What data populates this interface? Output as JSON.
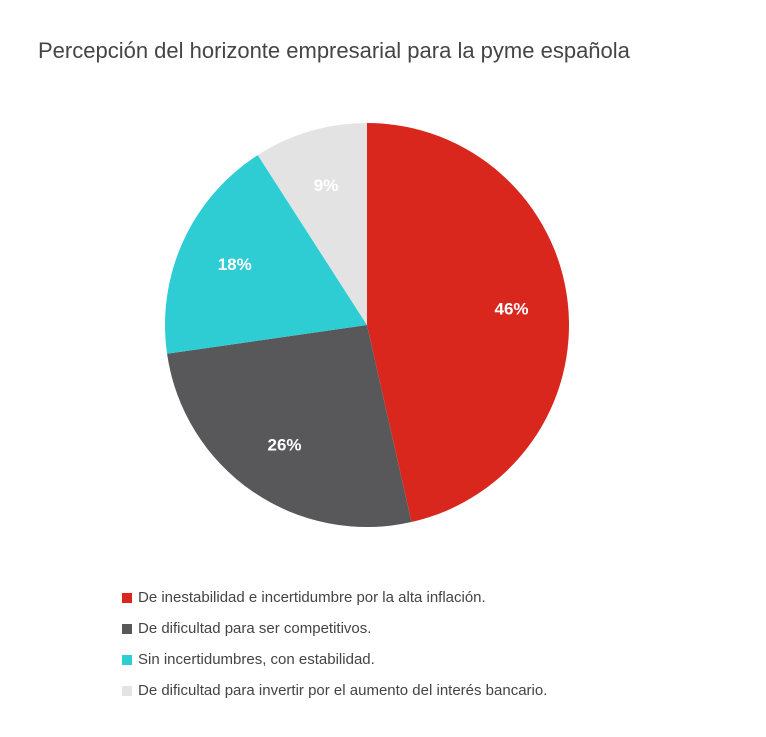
{
  "chart_data": {
    "type": "pie",
    "title": "Percepción del horizonte empresarial para la pyme española",
    "categories": [
      "De inestabilidad e incertidumbre por la alta inflación.",
      "De dificultad para ser competitivos.",
      "Sin incertidumbres, con estabilidad.",
      "De dificultad para invertir por el aumento del interés bancario."
    ],
    "values": [
      46,
      26,
      18,
      9
    ],
    "labels": [
      "46%",
      "26%",
      "18%",
      "9%"
    ],
    "colors": [
      "#d9271e",
      "#58585a",
      "#2ecdd4",
      "#e3e3e3"
    ],
    "label_colors": [
      "#ffffff",
      "#ffffff",
      "#ffffff",
      "#ffffff"
    ],
    "legend_position": "bottom-left"
  }
}
